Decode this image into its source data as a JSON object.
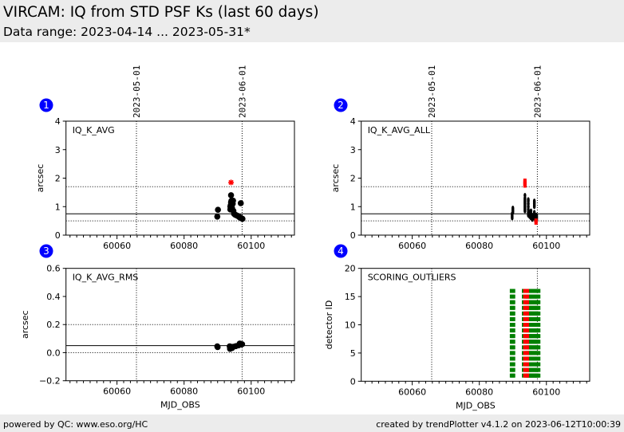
{
  "header": {
    "title": "VIRCAM: IQ from STD PSF Ks (last 60 days)",
    "subtitle": "Data range: 2023-04-14 ... 2023-05-31*"
  },
  "footer": {
    "left": "powered by QC: www.eso.org/HC",
    "right": "created by trendPlotter v4.1.2 on 2023-06-12T10:00:39"
  },
  "colors": {
    "badge": "#0000ff",
    "ok_points": "#000000",
    "outlier_points": "#ff0000",
    "scoring_ok": "#008000",
    "scoring_outlier": "#ff0000",
    "header_bg": "#ececec"
  },
  "chart_data": [
    {
      "panel": "1",
      "type": "scatter",
      "title": "IQ_K_AVG",
      "xlabel": "",
      "ylabel": "arcsec",
      "xlim": [
        60044.8,
        60112.9
      ],
      "ylim": [
        0,
        4
      ],
      "xticks": [
        60060,
        60080,
        60100
      ],
      "xticklabels": [
        "60060",
        "60080",
        "60100"
      ],
      "xminor_step": 2,
      "yticks": [
        0,
        1,
        2,
        3,
        4
      ],
      "yticklabels": [
        "0",
        "1",
        "2",
        "3",
        "4"
      ],
      "ref_lines": [
        {
          "y": 0.75,
          "style": "solid"
        },
        {
          "y": 1.7,
          "style": "dotted"
        },
        {
          "y": 0.5,
          "style": "dotted"
        }
      ],
      "date_markers": [
        {
          "label": "2023-05-01",
          "x": 60065.8
        },
        {
          "label": "2023-06-01",
          "x": 60097.3
        }
      ],
      "show_date_labels": true,
      "series": [
        {
          "name": "IQ_K_AVG",
          "color": "#000000",
          "marker": "circle",
          "points": [
            [
              60089.9,
              0.65
            ],
            [
              60090.1,
              0.89
            ],
            [
              60093.8,
              0.9
            ],
            [
              60093.8,
              1.0
            ],
            [
              60093.9,
              1.05
            ],
            [
              60094.0,
              1.15
            ],
            [
              60094.0,
              1.4
            ],
            [
              60094.1,
              1.2
            ],
            [
              60094.3,
              0.95
            ],
            [
              60094.5,
              1.1
            ],
            [
              60094.6,
              1.21
            ],
            [
              60094.7,
              0.85
            ],
            [
              60094.9,
              0.75
            ],
            [
              60095.2,
              0.72
            ],
            [
              60095.5,
              0.7
            ],
            [
              60095.9,
              0.68
            ],
            [
              60096.3,
              0.65
            ],
            [
              60096.6,
              0.62
            ],
            [
              60096.9,
              1.12
            ],
            [
              60097.0,
              0.6
            ],
            [
              60097.3,
              0.58
            ],
            [
              60097.4,
              0.57
            ]
          ]
        },
        {
          "name": "outlier",
          "color": "#ff0000",
          "marker": "star",
          "points": [
            [
              60094.0,
              1.85
            ]
          ]
        }
      ]
    },
    {
      "panel": "2",
      "type": "scatter",
      "title": "IQ_K_AVG_ALL",
      "xlabel": "",
      "ylabel": "arcsec",
      "xlim": [
        60044.8,
        60112.9
      ],
      "ylim": [
        0,
        4
      ],
      "xticks": [
        60060,
        60080,
        60100
      ],
      "xticklabels": [
        "60060",
        "60080",
        "60100"
      ],
      "xminor_step": 2,
      "yticks": [
        0,
        1,
        2,
        3,
        4
      ],
      "yticklabels": [
        "0",
        "1",
        "2",
        "3",
        "4"
      ],
      "ref_lines": [
        {
          "y": 0.75,
          "style": "solid"
        },
        {
          "y": 1.7,
          "style": "dotted"
        },
        {
          "y": 0.5,
          "style": "dotted"
        }
      ],
      "date_markers": [
        {
          "label": "2023-05-01",
          "x": 60065.8
        },
        {
          "label": "2023-06-01",
          "x": 60097.3
        }
      ],
      "show_date_labels": true,
      "series": [
        {
          "name": "IQ_K_AVG_ALL",
          "color": "#000000",
          "marker": "ellipse",
          "points": [
            [
              60089.8,
              0.6
            ],
            [
              60089.8,
              0.65
            ],
            [
              60089.8,
              0.7
            ],
            [
              60089.8,
              0.75
            ],
            [
              60090.0,
              0.8
            ],
            [
              60090.0,
              0.85
            ],
            [
              60090.0,
              0.9
            ],
            [
              60090.0,
              0.95
            ],
            [
              60093.6,
              0.85
            ],
            [
              60093.6,
              0.9
            ],
            [
              60093.6,
              0.95
            ],
            [
              60093.6,
              1.0
            ],
            [
              60093.6,
              1.05
            ],
            [
              60093.6,
              1.1
            ],
            [
              60093.6,
              1.15
            ],
            [
              60093.6,
              1.2
            ],
            [
              60093.6,
              1.25
            ],
            [
              60093.6,
              1.3
            ],
            [
              60093.6,
              1.4
            ],
            [
              60094.6,
              0.7
            ],
            [
              60094.6,
              0.8
            ],
            [
              60094.6,
              0.9
            ],
            [
              60094.6,
              1.0
            ],
            [
              60094.6,
              1.1
            ],
            [
              60094.6,
              1.2
            ],
            [
              60094.6,
              1.25
            ],
            [
              60095.0,
              0.65
            ],
            [
              60095.0,
              0.7
            ],
            [
              60095.0,
              0.8
            ],
            [
              60095.4,
              0.6
            ],
            [
              60095.4,
              0.65
            ],
            [
              60095.4,
              0.75
            ],
            [
              60095.4,
              0.85
            ],
            [
              60095.8,
              0.55
            ],
            [
              60095.8,
              0.6
            ],
            [
              60095.8,
              0.7
            ],
            [
              60096.4,
              0.6
            ],
            [
              60096.4,
              0.7
            ],
            [
              60096.4,
              0.8
            ],
            [
              60096.4,
              1.0
            ],
            [
              60096.4,
              1.05
            ],
            [
              60096.4,
              1.1
            ],
            [
              60096.4,
              1.15
            ],
            [
              60096.4,
              1.2
            ],
            [
              60096.8,
              0.55
            ],
            [
              60096.8,
              0.6
            ],
            [
              60096.8,
              0.7
            ],
            [
              60097.1,
              0.55
            ],
            [
              60097.1,
              0.6
            ],
            [
              60097.1,
              0.65
            ],
            [
              60097.1,
              0.7
            ]
          ]
        },
        {
          "name": "outlier",
          "color": "#ff0000",
          "marker": "bar",
          "points": [
            [
              60093.6,
              1.75
            ],
            [
              60093.6,
              1.8
            ],
            [
              60093.6,
              1.85
            ],
            [
              60093.6,
              1.9
            ],
            [
              60096.9,
              0.45
            ],
            [
              60096.9,
              0.5
            ]
          ]
        }
      ]
    },
    {
      "panel": "3",
      "type": "scatter",
      "title": "IQ_K_AVG_RMS",
      "xlabel": "MJD_OBS",
      "ylabel": "arcsec",
      "xlim": [
        60044.8,
        60112.9
      ],
      "ylim": [
        -0.2,
        0.6
      ],
      "xticks": [
        60060,
        60080,
        60100
      ],
      "xticklabels": [
        "60060",
        "60080",
        "60100"
      ],
      "xminor_step": 2,
      "yticks": [
        -0.2,
        0.0,
        0.2,
        0.4,
        0.6
      ],
      "yticklabels": [
        "−0.2",
        "0.0",
        "0.2",
        "0.4",
        "0.6"
      ],
      "ref_lines": [
        {
          "y": 0.05,
          "style": "solid"
        },
        {
          "y": 0.2,
          "style": "dotted"
        },
        {
          "y": 0.0,
          "style": "dotted"
        }
      ],
      "date_markers": [
        {
          "label": "2023-05-01",
          "x": 60065.8
        },
        {
          "label": "2023-06-01",
          "x": 60097.3
        }
      ],
      "show_date_labels": false,
      "series": [
        {
          "name": "IQ_K_AVG_RMS",
          "color": "#000000",
          "marker": "circle",
          "points": [
            [
              60089.9,
              0.045
            ],
            [
              60090.0,
              0.04
            ],
            [
              60093.6,
              0.045
            ],
            [
              60093.7,
              0.027
            ],
            [
              60093.9,
              0.042
            ],
            [
              60094.3,
              0.033
            ],
            [
              60094.7,
              0.042
            ],
            [
              60095.4,
              0.046
            ],
            [
              60096.2,
              0.052
            ],
            [
              60096.6,
              0.065
            ],
            [
              60097.0,
              0.058
            ],
            [
              60097.3,
              0.06
            ]
          ]
        }
      ]
    },
    {
      "panel": "4",
      "type": "scatter",
      "title": "SCORING_OUTLIERS",
      "xlabel": "MJD_OBS",
      "ylabel": "detector ID",
      "xlim": [
        60044.8,
        60112.9
      ],
      "ylim": [
        0,
        20
      ],
      "xticks": [
        60060,
        60080,
        60100
      ],
      "xticklabels": [
        "60060",
        "60080",
        "60100"
      ],
      "xminor_step": 2,
      "yticks": [
        0,
        5,
        10,
        15,
        20
      ],
      "yticklabels": [
        "0",
        "5",
        "10",
        "15",
        "20"
      ],
      "ref_lines": [],
      "date_markers": [
        {
          "label": "2023-05-01",
          "x": 60065.8
        },
        {
          "label": "2023-06-01",
          "x": 60097.3
        }
      ],
      "show_date_labels": false,
      "detectors": [
        1,
        2,
        3,
        4,
        5,
        6,
        7,
        8,
        9,
        10,
        11,
        12,
        13,
        14,
        15,
        16
      ],
      "series": [
        {
          "name": "scoring-ok",
          "color": "#008000",
          "marker": "square",
          "x": [
            60089.8,
            60090.0,
            60093.4,
            60094.6,
            60094.9,
            60095.2,
            60095.6,
            60096.0,
            60096.4,
            60096.8,
            60097.2,
            60097.5
          ]
        },
        {
          "name": "scoring-outlier",
          "color": "#ff0000",
          "marker": "square",
          "x": [
            60093.8,
            60094.1
          ]
        }
      ]
    }
  ]
}
